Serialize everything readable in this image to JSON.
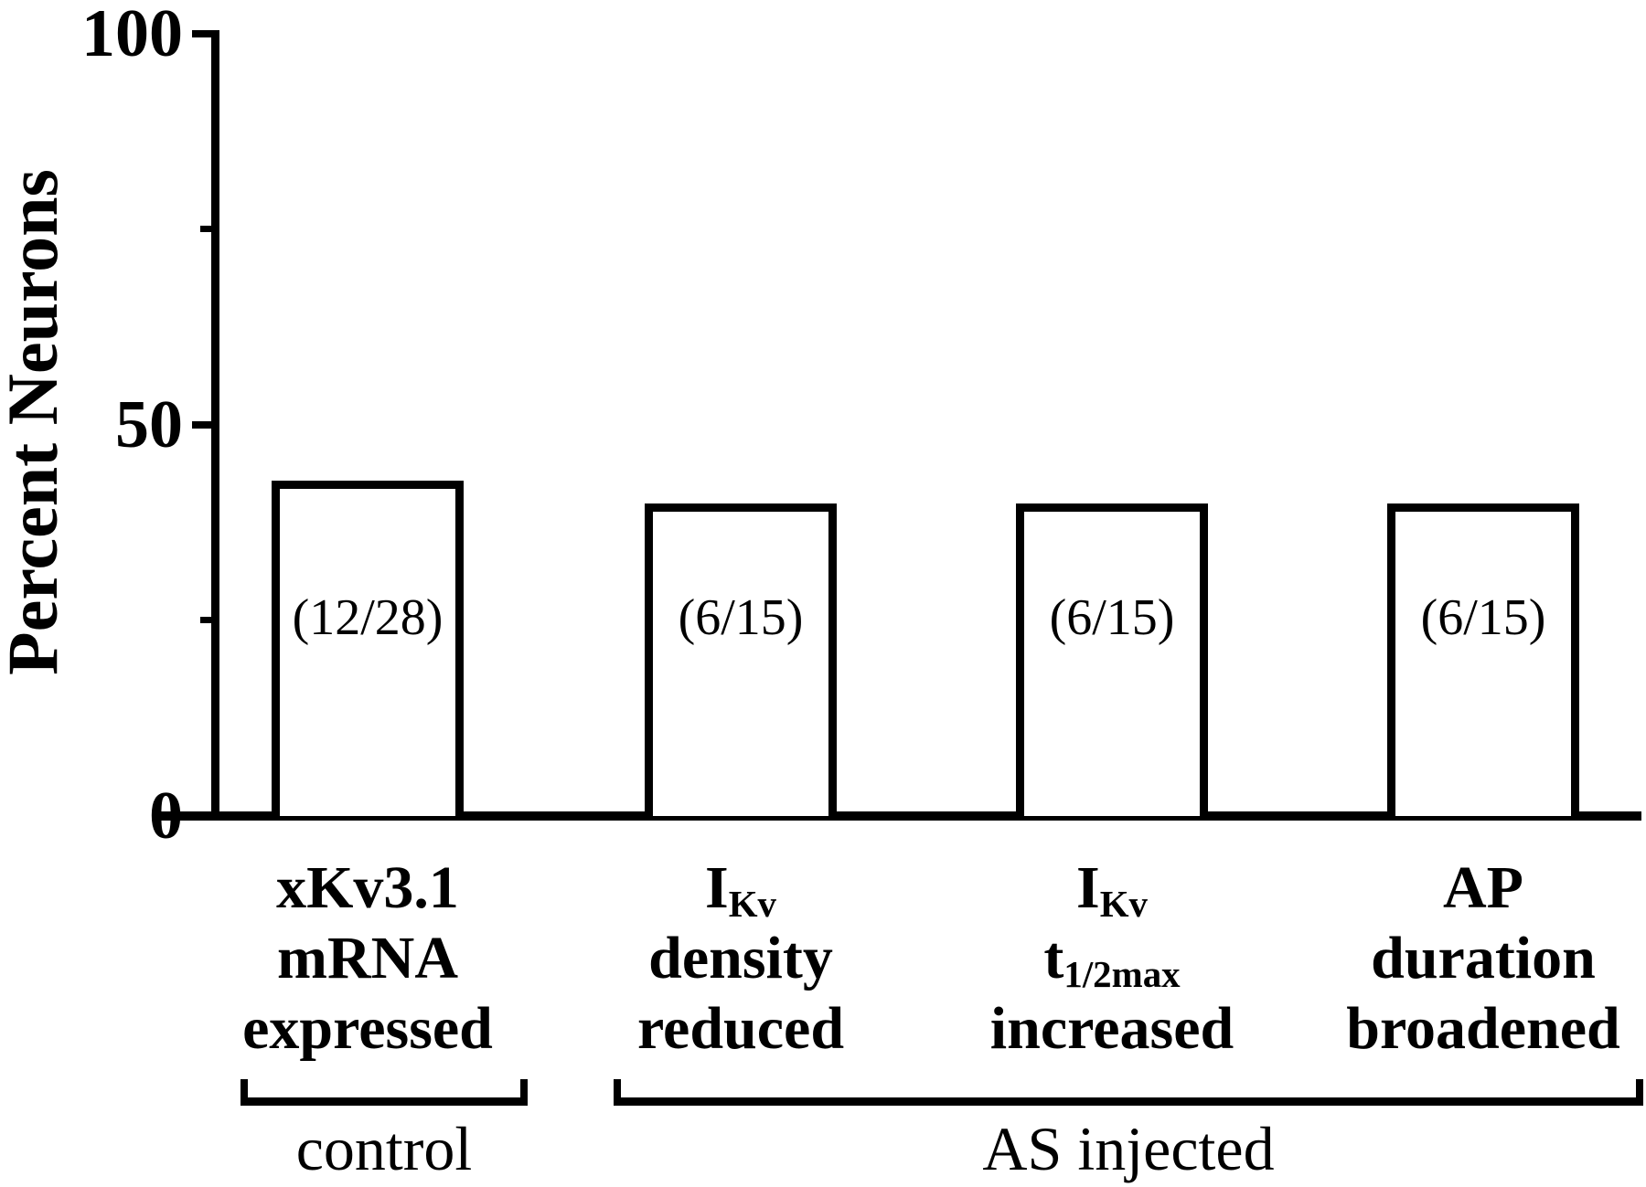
{
  "chart_data": {
    "type": "bar",
    "title": "",
    "ylabel": "Percent Neurons",
    "xlabel": "",
    "ylim": [
      0,
      100
    ],
    "yticks_major": [
      0,
      50,
      100
    ],
    "yticks_minor": [
      25,
      75
    ],
    "grid": false,
    "legend": null,
    "bar_fill": "#ffffff",
    "bar_edge": "#000000",
    "categories": [
      "xKv3.1 mRNA expressed",
      "I_{Kv} density reduced",
      "I_{Kv} t_{1/2max} increased",
      "AP duration broadened"
    ],
    "category_lines": [
      [
        "xKv3.1",
        "mRNA",
        "expressed"
      ],
      [
        "I_{Kv}",
        "density",
        "reduced"
      ],
      [
        "I_{Kv}",
        "t_{1/2max}",
        "increased"
      ],
      [
        "AP",
        "duration",
        "broadened"
      ]
    ],
    "values": [
      42.9,
      40,
      40,
      40
    ],
    "bar_annotations": [
      "(12/28)",
      "(6/15)",
      "(6/15)",
      "(6/15)"
    ],
    "groups": [
      {
        "label": "control",
        "bars": [
          0
        ]
      },
      {
        "label": "AS injected",
        "bars": [
          1,
          2,
          3
        ]
      }
    ]
  }
}
